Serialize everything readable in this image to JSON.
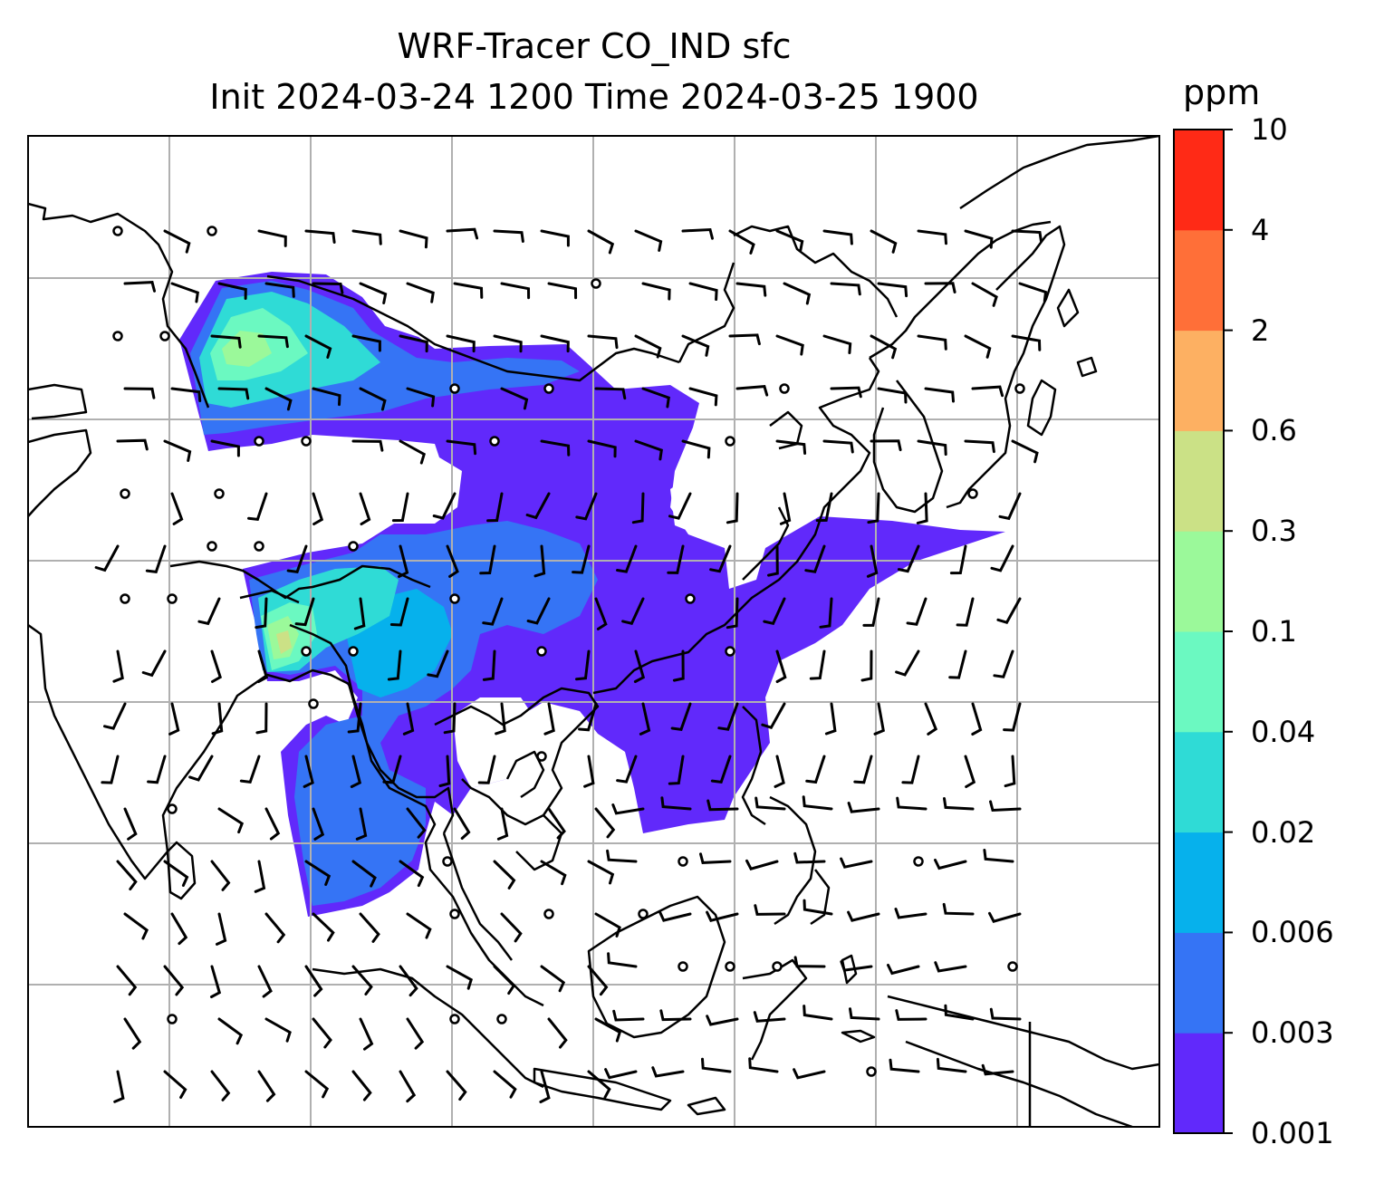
{
  "title": {
    "line1": "WRF-Tracer CO_IND sfc",
    "line2": "Init 2024-03-24 1200 Time 2024-03-25 1900"
  },
  "colorbar": {
    "unit": "ppm",
    "levels": [
      "0.001",
      "0.003",
      "0.006",
      "0.02",
      "0.04",
      "0.1",
      "0.3",
      "0.6",
      "2",
      "4",
      "10"
    ],
    "colors": [
      "#6129fb",
      "#3574f5",
      "#06b1ec",
      "#2fdbd6",
      "#6bf9c1",
      "#9bf99a",
      "#cbe186",
      "#fdb062",
      "#ff6f38",
      "#ff2a16"
    ]
  },
  "map": {
    "grid": "on",
    "grid_color": "#b0b0b0",
    "coastline_color": "#000000",
    "wind_barb_color": "#000000",
    "calm_marker": "circle"
  }
}
